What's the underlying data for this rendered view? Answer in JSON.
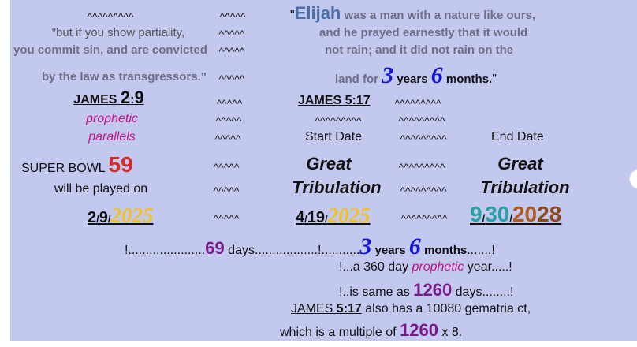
{
  "carets": [
    "^^^^^^^^^",
    "^^^^^",
    "^^^^^",
    "^^^^^",
    "^^^^^",
    "^^^^^",
    "^^^^^^^^^",
    "^^^^^",
    "^^^^^^^^^",
    "^^^^^^^^^",
    "^^^^^",
    "^^^^^^^^^",
    "^^^^^",
    "^^^^^^^^^",
    "^^^^^",
    "^^^^^^^^^",
    "^^^^^",
    "^^^^^^^^^"
  ],
  "left": {
    "quote_line1": "\"but if you show partiality,",
    "quote_line2": "you commit sin, and are convicted",
    "quote_line3": "by the law as transgressors.\"",
    "reference": [
      "JAMES ",
      "2",
      ":",
      "9"
    ],
    "parallels": [
      "prophetic",
      "parallels"
    ],
    "event": [
      "SUPER BOWL ",
      "59"
    ],
    "event_line2": "will be played on",
    "date": [
      "2",
      "/",
      "9",
      "/",
      "2025"
    ]
  },
  "middle": {
    "quote_line1": [
      "\"",
      "Elijah",
      " was a man with a nature like ours,"
    ],
    "quote_line2": "and he prayed earnestly that it would",
    "quote_line3": "not rain; and it did not rain on the",
    "quote_line4": [
      "land for ",
      "3",
      " years ",
      "6",
      " months.",
      "\""
    ],
    "reference": "JAMES 5:17",
    "start_label": "Start Date",
    "start_title": [
      "Great",
      "Tribulation"
    ],
    "start_date": [
      "4",
      "/",
      "19",
      "/",
      "2025"
    ]
  },
  "right": {
    "end_label": "End Date",
    "end_title": [
      "Great",
      "Tribulation"
    ],
    "end_date": [
      "9",
      "/",
      "30",
      "/",
      "20",
      "28"
    ]
  },
  "footer": {
    "line1": [
      "!......................",
      "69",
      " days..................!...........",
      "3",
      " years ",
      "6",
      " months",
      ".......!"
    ],
    "line2": [
      "!...a 360 day ",
      "prophetic",
      " year.....!"
    ],
    "line3": [
      "!..is same as ",
      "1260",
      " days........!"
    ],
    "line4": [
      "JAMES ",
      "5:17",
      " also has a 10080 gematria ct,"
    ],
    "line5": [
      "which is a multiple of ",
      "1260",
      " x 8."
    ]
  }
}
